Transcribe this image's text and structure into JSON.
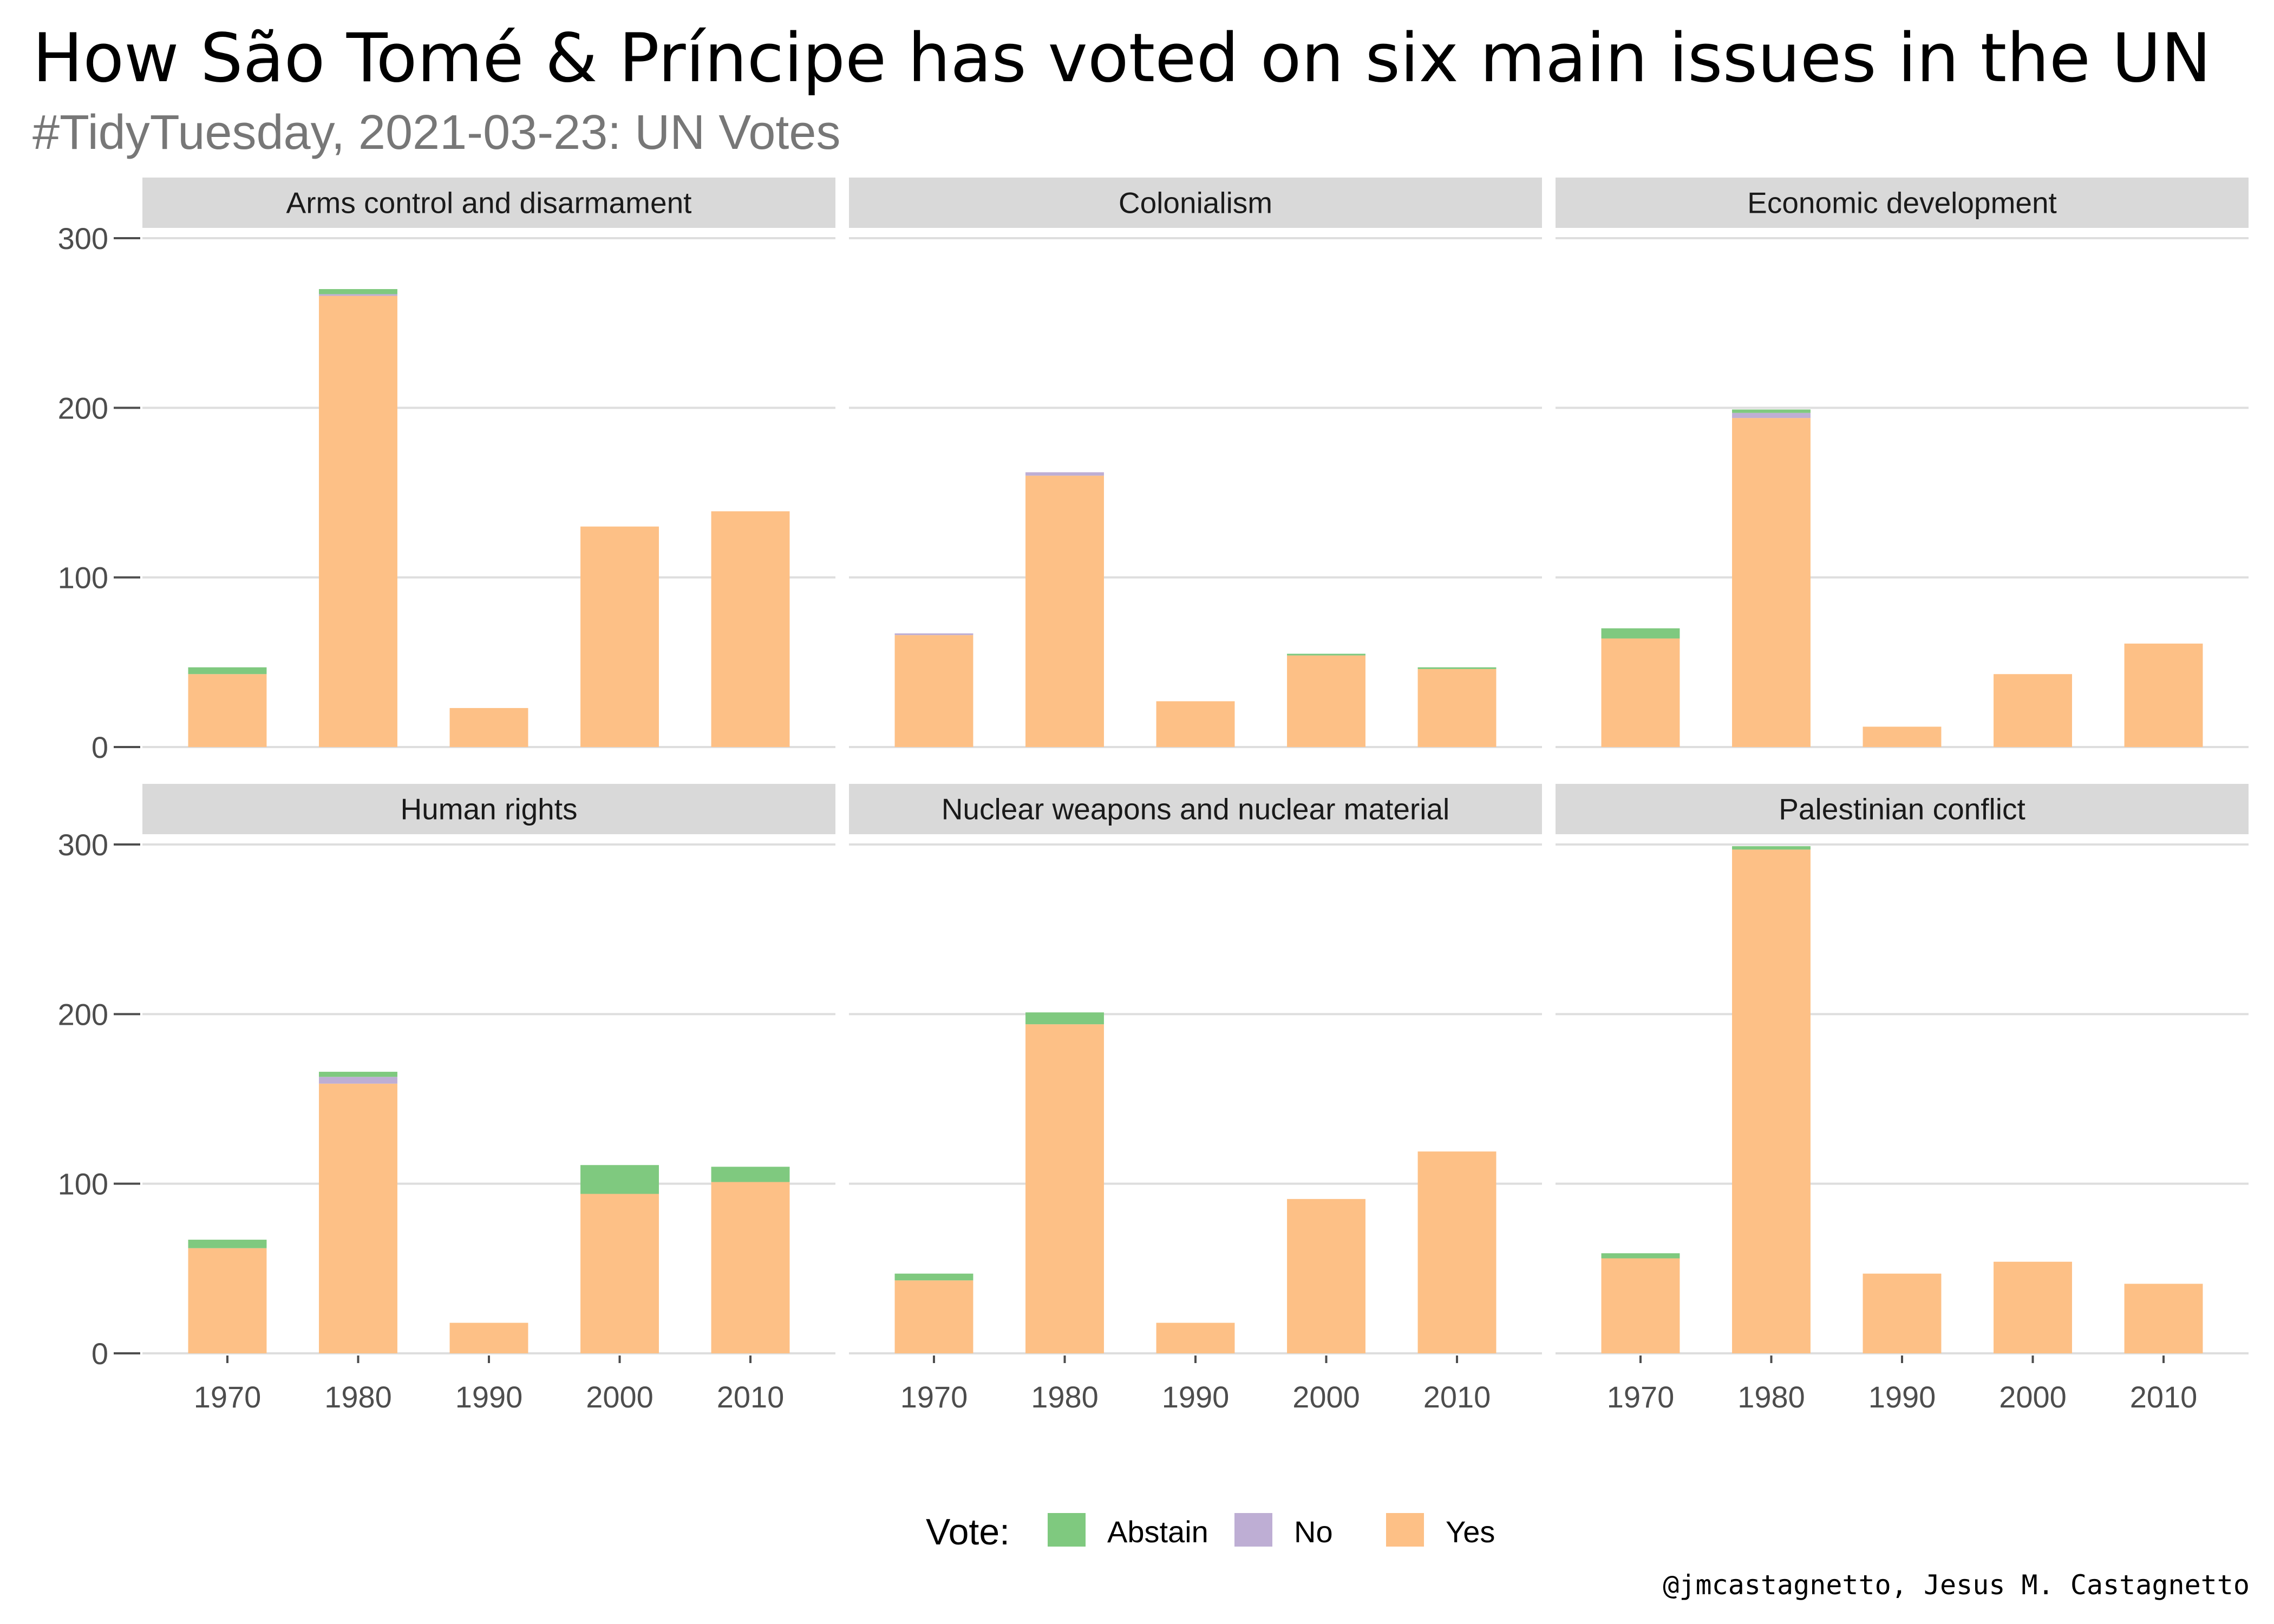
{
  "title": "How São Tomé & Príncipe has voted on six main issues in the UN",
  "subtitle": "#TidyTuesday, 2021-03-23: UN Votes",
  "caption": "@jmcastagnetto, Jesus M. Castagnetto",
  "legend": {
    "title": "Vote:",
    "items": [
      {
        "label": "Abstain",
        "color": "#7fc97f"
      },
      {
        "label": "No",
        "color": "#beaed4"
      },
      {
        "label": "Yes",
        "color": "#fdc086"
      }
    ]
  },
  "chart_data": {
    "type": "bar",
    "stacked": true,
    "faceted": true,
    "categories": [
      "1970",
      "1980",
      "1990",
      "2000",
      "2010"
    ],
    "ylim": [
      0,
      300
    ],
    "yticks": [
      0,
      100,
      200,
      300
    ],
    "grid": true,
    "legend_position": "bottom",
    "stack_order": [
      "Yes",
      "No",
      "Abstain"
    ],
    "facets": [
      {
        "name": "Arms control and disarmament",
        "series": [
          {
            "name": "Yes",
            "values": [
              43,
              266,
              23,
              130,
              139
            ]
          },
          {
            "name": "No",
            "values": [
              0,
              1,
              0,
              0,
              0
            ]
          },
          {
            "name": "Abstain",
            "values": [
              4,
              3,
              0,
              0,
              0
            ]
          }
        ]
      },
      {
        "name": "Colonialism",
        "series": [
          {
            "name": "Yes",
            "values": [
              66,
              160,
              27,
              54,
              46
            ]
          },
          {
            "name": "No",
            "values": [
              1,
              2,
              0,
              0,
              0
            ]
          },
          {
            "name": "Abstain",
            "values": [
              0,
              0,
              0,
              1,
              1
            ]
          }
        ]
      },
      {
        "name": "Economic development",
        "series": [
          {
            "name": "Yes",
            "values": [
              64,
              194,
              12,
              43,
              61
            ]
          },
          {
            "name": "No",
            "values": [
              0,
              3,
              0,
              0,
              0
            ]
          },
          {
            "name": "Abstain",
            "values": [
              6,
              2,
              0,
              0,
              0
            ]
          }
        ]
      },
      {
        "name": "Human rights",
        "series": [
          {
            "name": "Yes",
            "values": [
              62,
              159,
              18,
              94,
              101
            ]
          },
          {
            "name": "No",
            "values": [
              0,
              4,
              0,
              0,
              0
            ]
          },
          {
            "name": "Abstain",
            "values": [
              5,
              3,
              0,
              17,
              9
            ]
          }
        ]
      },
      {
        "name": "Nuclear weapons and nuclear material",
        "series": [
          {
            "name": "Yes",
            "values": [
              43,
              194,
              18,
              91,
              119
            ]
          },
          {
            "name": "No",
            "values": [
              0,
              0,
              0,
              0,
              0
            ]
          },
          {
            "name": "Abstain",
            "values": [
              4,
              7,
              0,
              0,
              0
            ]
          }
        ]
      },
      {
        "name": "Palestinian conflict",
        "series": [
          {
            "name": "Yes",
            "values": [
              56,
              297,
              47,
              54,
              41
            ]
          },
          {
            "name": "No",
            "values": [
              0,
              0,
              0,
              0,
              0
            ]
          },
          {
            "name": "Abstain",
            "values": [
              3,
              2,
              0,
              0,
              0
            ]
          }
        ]
      }
    ]
  }
}
